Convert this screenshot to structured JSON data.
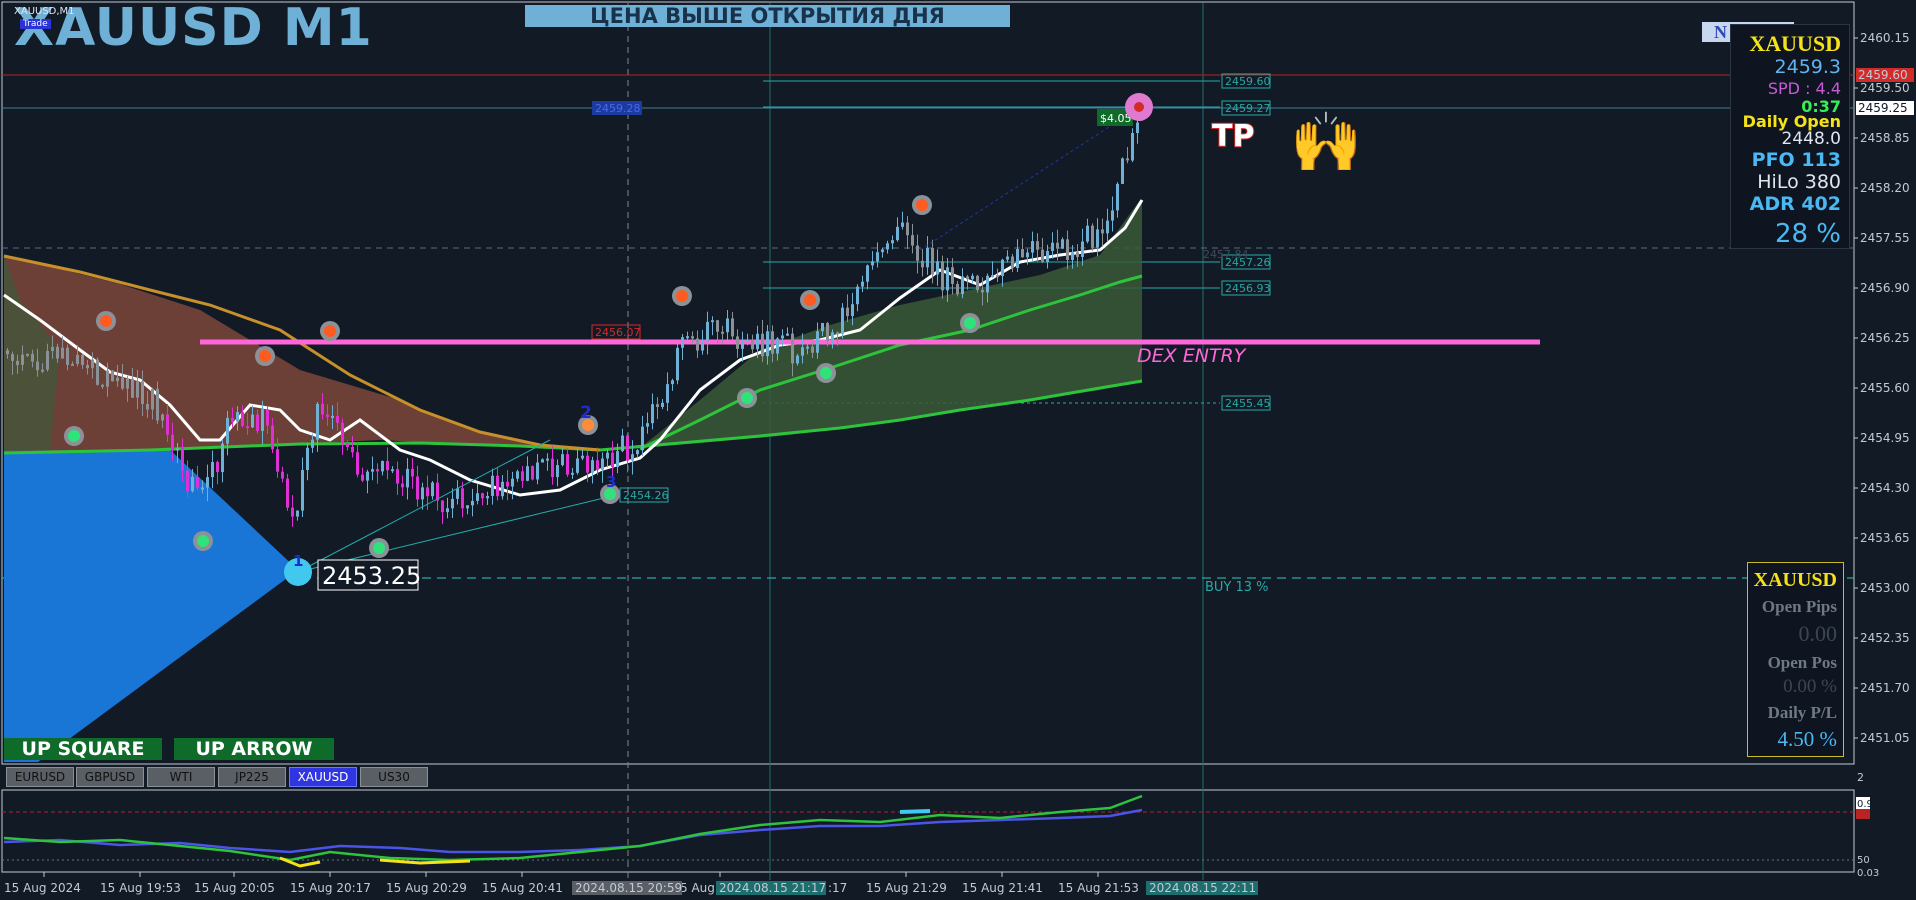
{
  "window": {
    "title": "XAUUSD M1",
    "symbol_tag": "XAUUSD,M1",
    "trade_badge": "Trade",
    "banner": "ЦЕНА ВЫШЕ ОТКРЫТИЯ ДНЯ",
    "top_right_button": "N"
  },
  "price_axis": {
    "ticks": [
      "2460.15",
      "2459.50",
      "2458.85",
      "2458.20",
      "2457.55",
      "2456.90",
      "2456.25",
      "2455.60",
      "2454.95",
      "2454.30",
      "2453.65",
      "2453.00",
      "2452.35",
      "2451.70",
      "2451.05"
    ],
    "highlight_red": "2459.60",
    "highlight_current": "2459.25"
  },
  "time_axis": {
    "ticks": [
      "15 Aug 2024",
      "15 Aug 19:53",
      "15 Aug 20:05",
      "15 Aug 20:17",
      "15 Aug 20:29",
      "15 Aug 20:41",
      "5 Aug",
      "15 Aug 21:29",
      "15 Aug 21:41",
      "15 Aug 21:53"
    ],
    "highlight_ticks": [
      "2024.08.15 20:59",
      "2024.08.15 21:17",
      "2024.08.15 22:11"
    ],
    "partial_tick": ":17"
  },
  "chart": {
    "level_labels": [
      "2459.60",
      "2459.27",
      "2457.26",
      "2456.93",
      "2455.45",
      "2454.26",
      "2453.25"
    ],
    "red_level_label": "2456.07",
    "blue_level_label": "2459.28",
    "dotted_small_label": "2457.84",
    "profit_label": "$4.05",
    "tp_label": "TP",
    "entry_text": "DEX ENTRY",
    "buy_label": "BUY 13 %",
    "low_callout": "2453.25",
    "wave_label_1": "1",
    "wave_label_2": "2",
    "wave_label_3": "3",
    "emoji": "🙌",
    "colors": {
      "bg": "#121a26",
      "bull_candle": "#6fb1d6",
      "bear_candle": "#e12fd8",
      "neutral_candle": "#8c9198",
      "fast_ma": "#ffffff",
      "slow_ma": "#2ec33c",
      "slow_ma2": "#c8902a",
      "magenta_line": "#ff66d9",
      "cyan_line": "#26a9a5",
      "red_line": "#b82323",
      "blue_triangle": "#1976d6"
    }
  },
  "info_panel": {
    "symbol": "XAUUSD",
    "bid": "2459.3",
    "spread": "SPD : 4.4",
    "time": "0:37",
    "daily_open_label": "Daily Open",
    "daily_open_value": "2448.0",
    "pfo": "PFO 113",
    "hilo": "HiLo 380",
    "adr": "ADR 402",
    "pct": "28 %"
  },
  "position_panel": {
    "symbol": "XAUUSD",
    "open_pips_label": "Open Pips",
    "open_pips_value": "0.00",
    "open_pos_label": "Open Pos",
    "open_pos_value": "0.00 %",
    "daily_pl_label": "Daily P/L",
    "daily_pl_value": "4.50 %"
  },
  "buttons": {
    "up_square": "UP SQUARE",
    "up_arrow": "UP ARROW"
  },
  "symbol_tabs": [
    {
      "label": "EURUSD",
      "active": false
    },
    {
      "label": "GBPUSD",
      "active": false
    },
    {
      "label": "WTI",
      "active": false
    },
    {
      "label": "JP225",
      "active": false
    },
    {
      "label": "XAUUSD",
      "active": true
    },
    {
      "label": "US30",
      "active": false
    }
  ],
  "sub_window": {
    "left_label": "2",
    "level_top": "0.9",
    "level_mid": "50",
    "level_bot": "0.03"
  }
}
